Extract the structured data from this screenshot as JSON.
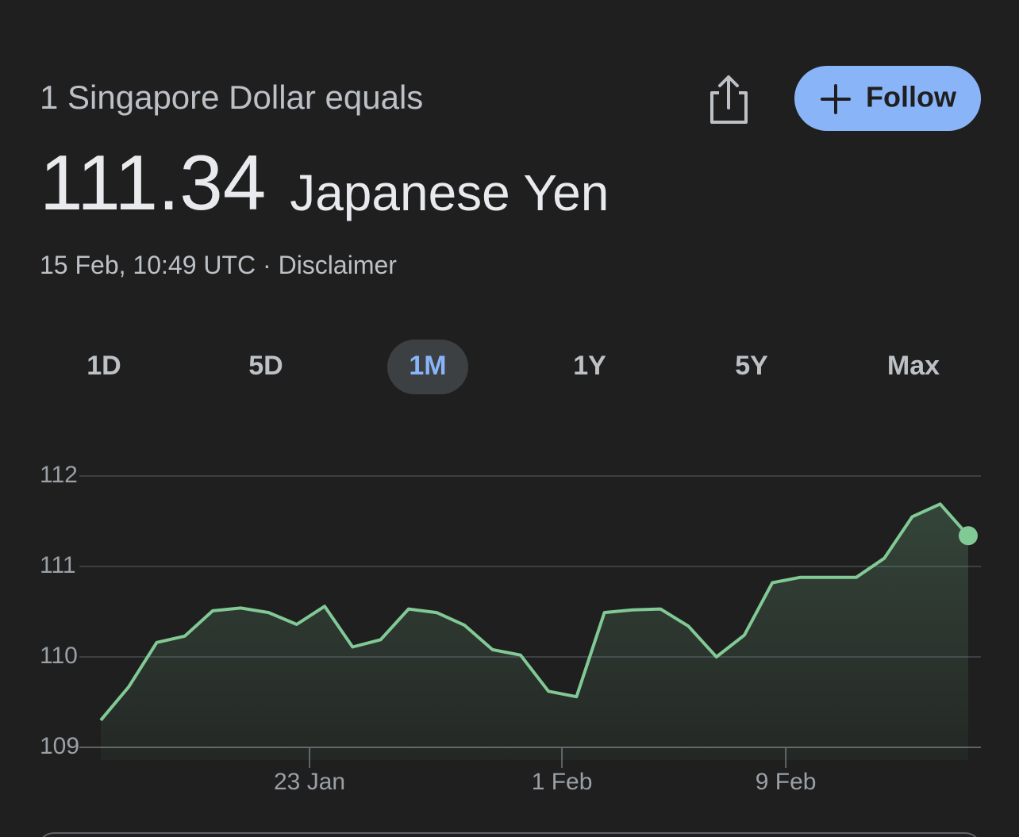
{
  "header": {
    "subtitle": "1 Singapore Dollar equals",
    "value": "111.34",
    "unit": "Japanese Yen",
    "timestamp": "15 Feb, 10:49 UTC",
    "separator": "·",
    "disclaimer": "Disclaimer"
  },
  "follow_button": "Follow",
  "tabs": [
    "1D",
    "5D",
    "1M",
    "1Y",
    "5Y",
    "Max"
  ],
  "selected_tab": "1M",
  "chart_data": {
    "type": "line",
    "color": "#81c995",
    "categories": [
      null,
      null,
      null,
      null,
      null,
      null,
      null,
      null,
      null,
      null,
      null,
      null,
      null,
      null,
      null,
      null,
      null,
      null,
      null,
      null,
      null,
      null,
      null,
      null,
      null,
      null,
      null,
      null,
      null,
      null,
      null,
      null
    ],
    "values": [
      109.3,
      109.67,
      110.16,
      110.23,
      110.51,
      110.54,
      110.49,
      110.36,
      110.56,
      110.11,
      110.19,
      110.53,
      110.49,
      110.35,
      110.08,
      110.02,
      109.62,
      109.56,
      110.49,
      110.52,
      110.53,
      110.34,
      110.0,
      110.24,
      110.82,
      110.88,
      110.88,
      110.88,
      111.09,
      111.55,
      111.69,
      111.34
    ],
    "xlim": [
      0,
      31
    ],
    "xticks": [
      {
        "value": 7.46,
        "label": "23 Jan"
      },
      {
        "value": 16.48,
        "label": "1 Feb"
      },
      {
        "value": 24.48,
        "label": "9 Feb"
      }
    ],
    "ylim": [
      109,
      112
    ],
    "yticks": [
      109,
      110,
      111,
      112
    ],
    "grid": true
  }
}
